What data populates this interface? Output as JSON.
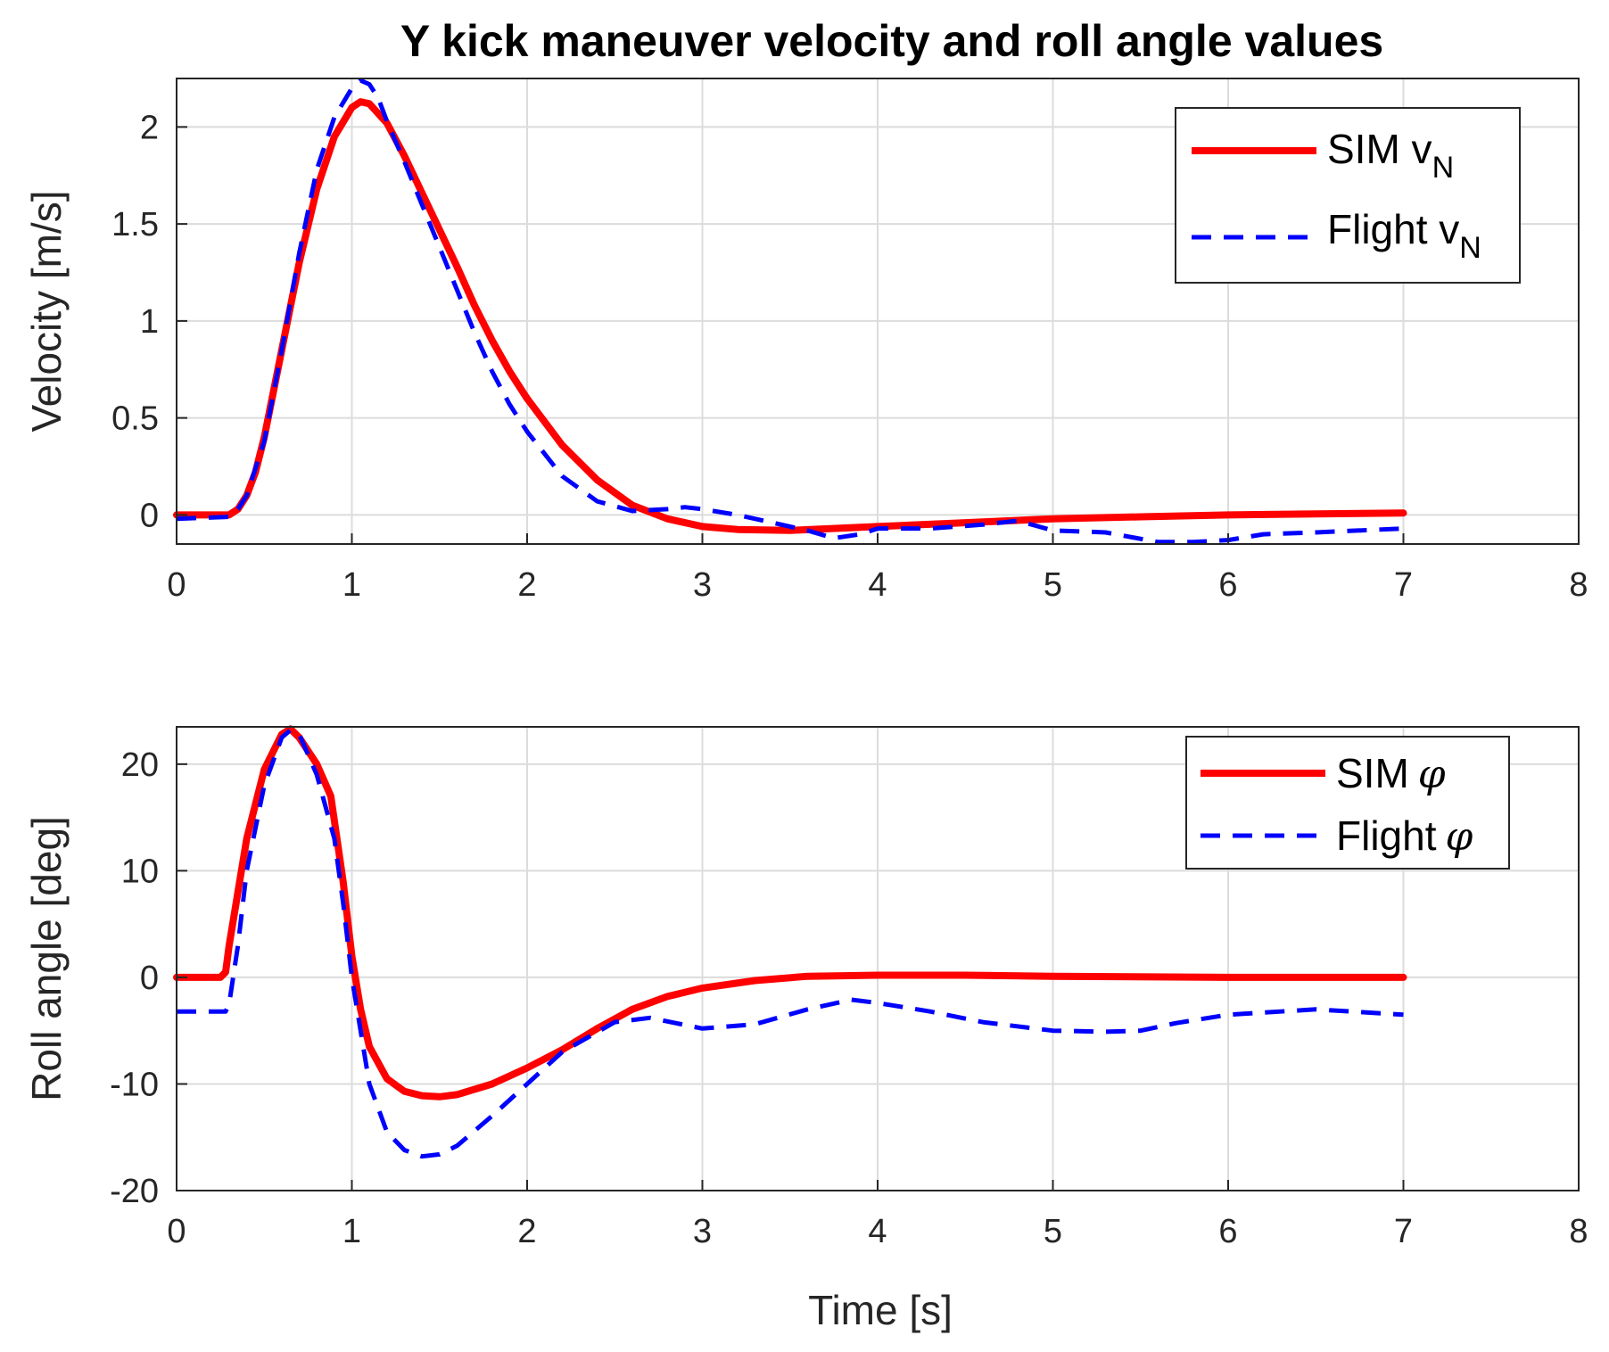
{
  "figure": {
    "title": "Y kick maneuver velocity and roll angle values"
  },
  "colors": {
    "sim": "#ff0000",
    "flight": "#0000ff",
    "grid": "#dcdcdc",
    "axis": "#262626"
  },
  "chart_data": [
    {
      "type": "line",
      "name": "velocity",
      "xlabel": "",
      "ylabel": "Velocity [m/s]",
      "xlim": [
        0,
        8
      ],
      "ylim": [
        -0.15,
        2.25
      ],
      "xticks": [
        0,
        1,
        2,
        3,
        4,
        5,
        6,
        7,
        8
      ],
      "xtick_labels": [
        "0",
        "1",
        "2",
        "3",
        "4",
        "5",
        "6",
        "7",
        "8"
      ],
      "yticks": [
        0,
        0.5,
        1,
        1.5,
        2
      ],
      "ytick_labels": [
        "0",
        "0.5",
        "1",
        "1.5",
        "2"
      ],
      "grid": true,
      "legend_position": "top-right",
      "series": [
        {
          "name": "SIM v_N",
          "label_main": "SIM v",
          "label_sub": "N",
          "style": "solid",
          "x": [
            0,
            0.3,
            0.35,
            0.4,
            0.45,
            0.5,
            0.6,
            0.7,
            0.8,
            0.9,
            1.0,
            1.05,
            1.1,
            1.2,
            1.3,
            1.4,
            1.5,
            1.6,
            1.7,
            1.8,
            1.9,
            2.0,
            2.2,
            2.4,
            2.6,
            2.8,
            3.0,
            3.2,
            3.5,
            4.0,
            4.5,
            5.0,
            5.5,
            6.0,
            6.5,
            7.0
          ],
          "y": [
            0,
            0,
            0.03,
            0.1,
            0.22,
            0.4,
            0.85,
            1.3,
            1.68,
            1.95,
            2.1,
            2.13,
            2.12,
            2.02,
            1.85,
            1.66,
            1.47,
            1.28,
            1.08,
            0.9,
            0.74,
            0.6,
            0.36,
            0.18,
            0.05,
            -0.02,
            -0.06,
            -0.075,
            -0.08,
            -0.06,
            -0.04,
            -0.02,
            -0.01,
            0.0,
            0.005,
            0.01
          ]
        },
        {
          "name": "Flight v_N",
          "label_main": "Flight v",
          "label_sub": "N",
          "style": "dashed",
          "x": [
            0,
            0.3,
            0.35,
            0.4,
            0.5,
            0.6,
            0.7,
            0.8,
            0.9,
            1.0,
            1.05,
            1.1,
            1.15,
            1.2,
            1.3,
            1.4,
            1.5,
            1.6,
            1.7,
            1.8,
            1.9,
            2.0,
            2.2,
            2.4,
            2.6,
            2.8,
            2.9,
            3.0,
            3.2,
            3.4,
            3.6,
            3.75,
            3.9,
            4.0,
            4.3,
            4.6,
            4.8,
            5.0,
            5.3,
            5.6,
            5.8,
            6.0,
            6.2,
            6.5,
            7.0
          ],
          "y": [
            -0.02,
            -0.01,
            0.03,
            0.1,
            0.38,
            0.85,
            1.35,
            1.78,
            2.05,
            2.2,
            2.24,
            2.22,
            2.15,
            2.03,
            1.82,
            1.6,
            1.38,
            1.16,
            0.94,
            0.74,
            0.57,
            0.43,
            0.2,
            0.07,
            0.02,
            0.03,
            0.04,
            0.03,
            0.0,
            -0.04,
            -0.08,
            -0.12,
            -0.1,
            -0.07,
            -0.07,
            -0.05,
            -0.03,
            -0.08,
            -0.09,
            -0.14,
            -0.14,
            -0.13,
            -0.1,
            -0.09,
            -0.07
          ]
        }
      ]
    },
    {
      "type": "line",
      "name": "roll",
      "xlabel": "Time [s]",
      "ylabel": "Roll angle [deg]",
      "xlim": [
        0,
        8
      ],
      "ylim": [
        -20,
        23.5
      ],
      "xticks": [
        0,
        1,
        2,
        3,
        4,
        5,
        6,
        7,
        8
      ],
      "xtick_labels": [
        "0",
        "1",
        "2",
        "3",
        "4",
        "5",
        "6",
        "7",
        "8"
      ],
      "yticks": [
        -20,
        -10,
        0,
        10,
        20
      ],
      "ytick_labels": [
        "-20",
        "-10",
        "0",
        "10",
        "20"
      ],
      "grid": true,
      "legend_position": "top-right",
      "series": [
        {
          "name": "SIM φ",
          "label_main": "SIM",
          "label_sym": "φ",
          "style": "solid",
          "x": [
            0,
            0.25,
            0.28,
            0.3,
            0.4,
            0.5,
            0.6,
            0.65,
            0.7,
            0.8,
            0.88,
            0.95,
            1.0,
            1.05,
            1.1,
            1.2,
            1.3,
            1.4,
            1.5,
            1.6,
            1.8,
            2.0,
            2.2,
            2.4,
            2.6,
            2.8,
            3.0,
            3.3,
            3.6,
            4.0,
            4.5,
            5.0,
            6.0,
            7.0
          ],
          "y": [
            0,
            0,
            0.5,
            3,
            13,
            19.5,
            22.8,
            23.3,
            22.5,
            20,
            17,
            9,
            2,
            -3,
            -6.5,
            -9.5,
            -10.7,
            -11.1,
            -11.2,
            -11,
            -10,
            -8.5,
            -6.8,
            -4.8,
            -3,
            -1.8,
            -1,
            -0.3,
            0.1,
            0.2,
            0.2,
            0.1,
            0.0,
            0.0
          ]
        },
        {
          "name": "Flight φ",
          "label_main": "Flight",
          "label_sym": "φ",
          "style": "dashed",
          "x": [
            0,
            0.28,
            0.3,
            0.35,
            0.4,
            0.5,
            0.6,
            0.65,
            0.7,
            0.8,
            0.9,
            0.95,
            1.0,
            1.05,
            1.1,
            1.2,
            1.3,
            1.4,
            1.5,
            1.6,
            1.8,
            2.0,
            2.2,
            2.5,
            2.7,
            3.0,
            3.3,
            3.6,
            3.85,
            4.0,
            4.3,
            4.6,
            5.0,
            5.3,
            5.5,
            5.7,
            6.0,
            6.2,
            6.5,
            7.0
          ],
          "y": [
            -3.2,
            -3.2,
            -2.5,
            3,
            10,
            18,
            22.5,
            23.2,
            22.8,
            19,
            13,
            7,
            0,
            -5,
            -10,
            -14.5,
            -16.2,
            -16.8,
            -16.6,
            -15.8,
            -13,
            -10,
            -7,
            -4.2,
            -3.8,
            -4.8,
            -4.4,
            -3,
            -2.1,
            -2.4,
            -3.2,
            -4.2,
            -5.0,
            -5.1,
            -5.0,
            -4.3,
            -3.5,
            -3.3,
            -3.0,
            -3.5
          ]
        }
      ]
    }
  ]
}
